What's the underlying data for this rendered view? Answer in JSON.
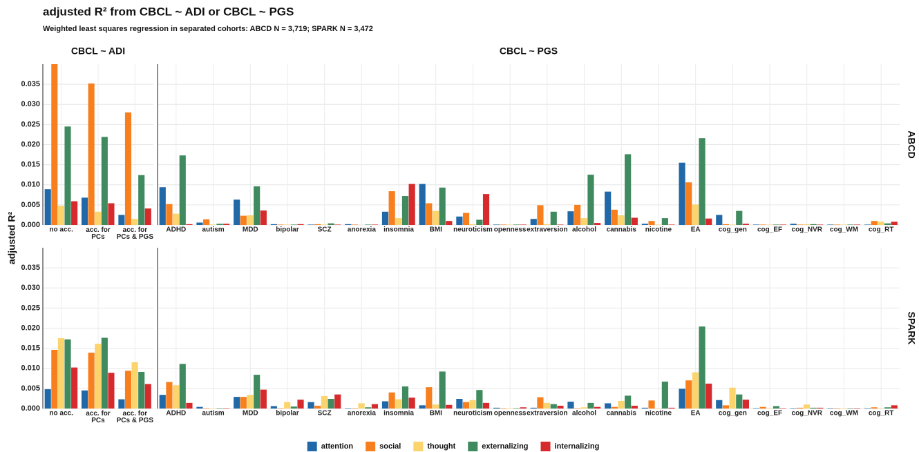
{
  "chart_data": [
    {
      "type": "bar",
      "title": "adjusted R² from CBCL ~ ADI or CBCL ~ PGS",
      "subtitle": "Weighted least squares regression in separated cohorts: ABCD N = 3,719; SPARK N = 3,472",
      "y_label": "adjusted R²",
      "facets": [
        "CBCL ~ ADI",
        "CBCL ~ PGS"
      ],
      "row": "ABCD",
      "categories": [
        "no acc.",
        "acc. for\nPCs",
        "acc. for\nPCs & PGS",
        "ADHD",
        "autism",
        "MDD",
        "bipolar",
        "SCZ",
        "anorexia",
        "insomnia",
        "BMI",
        "neuroticism",
        "openness",
        "extraversion",
        "alcohol",
        "cannabis",
        "nicotine",
        "EA",
        "cog_gen",
        "cog_EF",
        "cog_NVR",
        "cog_WM",
        "cog_RT"
      ],
      "ylim": [
        0,
        0.04
      ],
      "yticks": [
        {
          "value": 0,
          "label": "0.000"
        },
        {
          "value": 0.005,
          "label": "0.005"
        },
        {
          "value": 0.01,
          "label": "0.010"
        },
        {
          "value": 0.015,
          "label": "0.015"
        },
        {
          "value": 0.02,
          "label": "0.020"
        },
        {
          "value": 0.025,
          "label": "0.025"
        },
        {
          "value": 0.03,
          "label": "0.030"
        },
        {
          "value": 0.035,
          "label": "0.035"
        }
      ],
      "grid": true,
      "legend": "bottom",
      "series": [
        {
          "name": "attention",
          "color": "#2068a8",
          "values": [
            0.0089,
            0.0068,
            0.0025,
            0.0094,
            0.0006,
            0.0063,
            0.0002,
            0.0001,
            0.0002,
            0.0033,
            0.0102,
            0.0021,
            0.0001,
            0.0015,
            0.0034,
            0.0083,
            0.0003,
            0.0155,
            0.0025,
            0.0001,
            0.0003,
            0.0001,
            0.0001
          ]
        },
        {
          "name": "social",
          "color": "#f77f1e",
          "values": [
            0.04,
            0.0352,
            0.028,
            0.0052,
            0.0014,
            0.0023,
            0.0001,
            0.0002,
            0.0001,
            0.0084,
            0.0054,
            0.003,
            0.0001,
            0.0049,
            0.005,
            0.0038,
            0.001,
            0.0106,
            0.0002,
            0.0001,
            0.0001,
            0.0001,
            0.001
          ]
        },
        {
          "name": "thought",
          "color": "#fbd46e",
          "values": [
            0.0048,
            0.0033,
            0.0015,
            0.0028,
            0.0001,
            0.0024,
            0.0001,
            0.0001,
            0,
            0.0017,
            0.0035,
            0.0002,
            0.0001,
            0.0002,
            0.0017,
            0.0024,
            0.0001,
            0.0051,
            0.0001,
            0.0001,
            0.0002,
            0.0001,
            0.0008
          ]
        },
        {
          "name": "externalizing",
          "color": "#3f8a5e",
          "values": [
            0.0245,
            0.0219,
            0.0124,
            0.0173,
            0.0003,
            0.0096,
            0.0001,
            0.0004,
            0.0001,
            0.0072,
            0.0093,
            0.0013,
            0.0001,
            0.0033,
            0.0125,
            0.0176,
            0.0017,
            0.0216,
            0.0035,
            0.0001,
            0.0002,
            0.0001,
            0.0004
          ]
        },
        {
          "name": "internalizing",
          "color": "#d62a2c",
          "values": [
            0.0059,
            0.0054,
            0.0041,
            0.0002,
            0.0003,
            0.0036,
            0.0002,
            0.0001,
            0.0001,
            0.0102,
            0.001,
            0.0077,
            0.0001,
            0.0001,
            0.0005,
            0.0018,
            0.0001,
            0.0016,
            0.0003,
            0.0001,
            0.0001,
            0.0001,
            0.0008
          ]
        }
      ]
    },
    {
      "type": "bar",
      "row": "SPARK",
      "categories": [
        "no acc.",
        "acc. for\nPCs",
        "acc. for\nPCs & PGS",
        "ADHD",
        "autism",
        "MDD",
        "bipolar",
        "SCZ",
        "anorexia",
        "insomnia",
        "BMI",
        "neuroticism",
        "openness",
        "extraversion",
        "alcohol",
        "cannabis",
        "nicotine",
        "EA",
        "cog_gen",
        "cog_EF",
        "cog_NVR",
        "cog_WM",
        "cog_RT"
      ],
      "ylim": [
        0,
        0.04
      ],
      "yticks": [
        {
          "value": 0,
          "label": "0.000"
        },
        {
          "value": 0.005,
          "label": "0.005"
        },
        {
          "value": 0.01,
          "label": "0.010"
        },
        {
          "value": 0.015,
          "label": "0.015"
        },
        {
          "value": 0.02,
          "label": "0.020"
        },
        {
          "value": 0.025,
          "label": "0.025"
        },
        {
          "value": 0.03,
          "label": "0.030"
        },
        {
          "value": 0.035,
          "label": "0.035"
        }
      ],
      "grid": true,
      "series": [
        {
          "color": "#2068a8",
          "values": [
            0.0048,
            0.0045,
            0.0023,
            0.0034,
            0.0004,
            0.0029,
            0.0006,
            0.0016,
            0.0001,
            0.0018,
            0.0008,
            0.0024,
            0.0002,
            0.0002,
            0.0017,
            0.0013,
            0.0002,
            0.0049,
            0.0021,
            0.0001,
            0.0001,
            0.0001,
            0.0001
          ]
        },
        {
          "color": "#f77f1e",
          "values": [
            0.0146,
            0.0139,
            0.0094,
            0.0066,
            0.0001,
            0.0029,
            0.0001,
            0.0007,
            0.0001,
            0.004,
            0.0053,
            0.0016,
            0.0001,
            0.0028,
            0.0001,
            0.0004,
            0.002,
            0.007,
            0.0008,
            0.0004,
            0.0002,
            0.0001,
            0.0003
          ]
        },
        {
          "color": "#fbd46e",
          "values": [
            0.0175,
            0.0161,
            0.0115,
            0.0058,
            0.0001,
            0.0034,
            0.0016,
            0.0031,
            0.0013,
            0.0023,
            0.001,
            0.0021,
            0.0001,
            0.0014,
            0.0003,
            0.0019,
            0.0001,
            0.009,
            0.0052,
            0.0001,
            0.001,
            0.0001,
            0.0001
          ]
        },
        {
          "color": "#3f8a5e",
          "values": [
            0.0172,
            0.0176,
            0.0091,
            0.0111,
            0.0001,
            0.0084,
            0.0005,
            0.0024,
            0.0003,
            0.0055,
            0.0092,
            0.0046,
            0.0001,
            0.0011,
            0.0014,
            0.0032,
            0.0067,
            0.0204,
            0.0035,
            0.0006,
            0.0002,
            0.0001,
            0.0003
          ]
        },
        {
          "color": "#d62a2c",
          "values": [
            0.0102,
            0.0089,
            0.0061,
            0.0014,
            0.0001,
            0.0047,
            0.0022,
            0.0035,
            0.0011,
            0.0027,
            0.0009,
            0.0014,
            0.0003,
            0.0007,
            0.0004,
            0.0007,
            0.0002,
            0.0062,
            0.0022,
            0.0001,
            0.0002,
            0.0001,
            0.0008
          ]
        }
      ]
    }
  ]
}
